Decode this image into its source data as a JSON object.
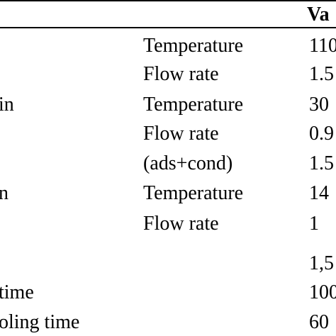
{
  "table": {
    "header": {
      "value_col": "Va"
    },
    "rows": [
      {
        "label": "",
        "param": "Temperature",
        "value": "110"
      },
      {
        "label": "",
        "param": "Flow rate",
        "value": "1.5"
      },
      {
        "label": "in",
        "param": "Temperature",
        "value": "30"
      },
      {
        "label": "",
        "param": "Flow rate",
        "value": "0.9"
      },
      {
        "label": "",
        "param": "(ads+cond)",
        "value": "1.5"
      },
      {
        "label": "n",
        "param": "Temperature",
        "value": "14"
      },
      {
        "label": "",
        "param": "Flow rate",
        "value": "1"
      },
      {
        "label": "",
        "param": "",
        "value": "1,5"
      },
      {
        "label": "time",
        "param": "",
        "value": "100"
      },
      {
        "label": "oling time",
        "param": "",
        "value": "60"
      }
    ]
  }
}
